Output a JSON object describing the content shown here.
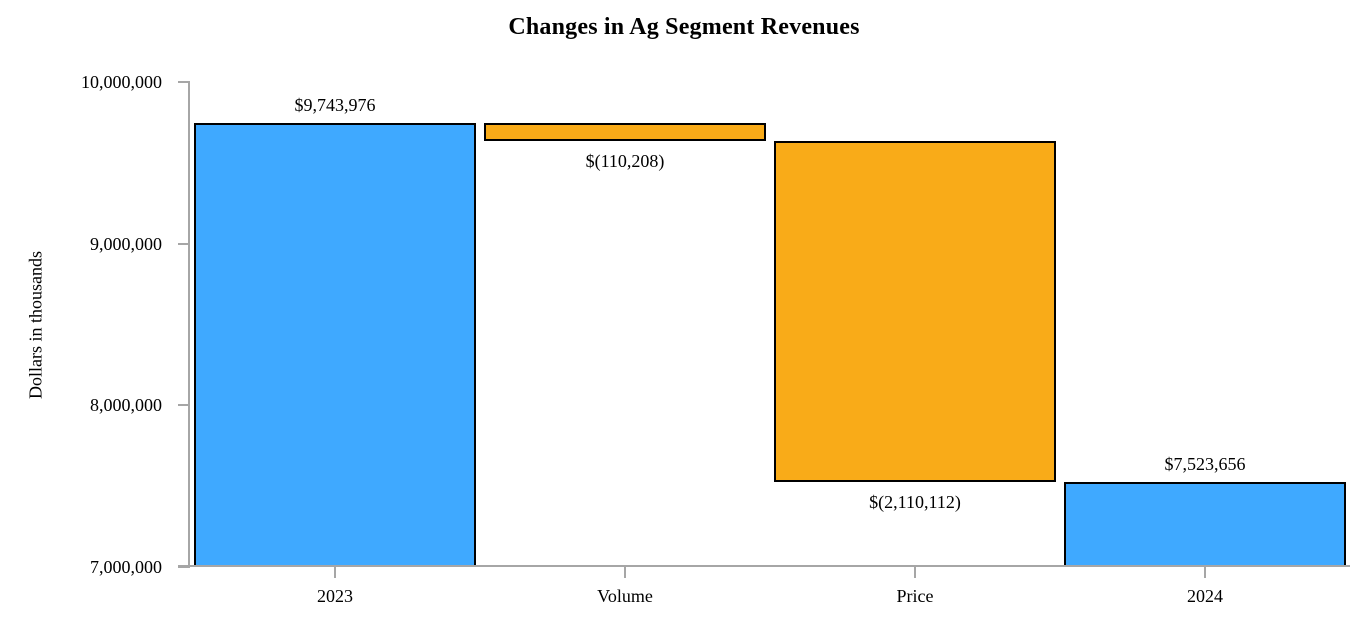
{
  "chart_data": {
    "type": "bar",
    "subtype": "waterfall",
    "title": "Changes in Ag Segment Revenues",
    "xlabel": "",
    "ylabel": "Dollars in thousands",
    "ylim": [
      7000000,
      10000000
    ],
    "grid": false,
    "legend_position": "none",
    "yticks": [
      {
        "value": 10000000,
        "label": "10,000,000"
      },
      {
        "value": 9000000,
        "label": "9,000,000"
      },
      {
        "value": 8000000,
        "label": "8,000,000"
      },
      {
        "value": 7000000,
        "label": "7,000,000"
      }
    ],
    "categories": [
      "2023",
      "Volume",
      "Price",
      "2024"
    ],
    "bars": [
      {
        "category": "2023",
        "role": "total",
        "from": 7000000,
        "to": 9743976,
        "value": 9743976,
        "label": "$9,743,976",
        "label_position": "above",
        "color": "#3FA9FF"
      },
      {
        "category": "Volume",
        "role": "decrease",
        "from": 9633768,
        "to": 9743976,
        "value": -110208,
        "label": "$(110,208)",
        "label_position": "below",
        "color": "#F9AB18"
      },
      {
        "category": "Price",
        "role": "decrease",
        "from": 7523656,
        "to": 9633768,
        "value": -2110112,
        "label": "$(2,110,112)",
        "label_position": "below",
        "color": "#F9AB18"
      },
      {
        "category": "2024",
        "role": "total",
        "from": 7000000,
        "to": 7523656,
        "value": 7523656,
        "label": "$7,523,656",
        "label_position": "above",
        "color": "#3FA9FF"
      }
    ],
    "colors": {
      "total_bar": "#3FA9FF",
      "change_bar": "#F9AB18",
      "bar_border": "#000000",
      "axis": "#A6A6A6",
      "text": "#000000",
      "background": "#FFFFFF"
    }
  }
}
